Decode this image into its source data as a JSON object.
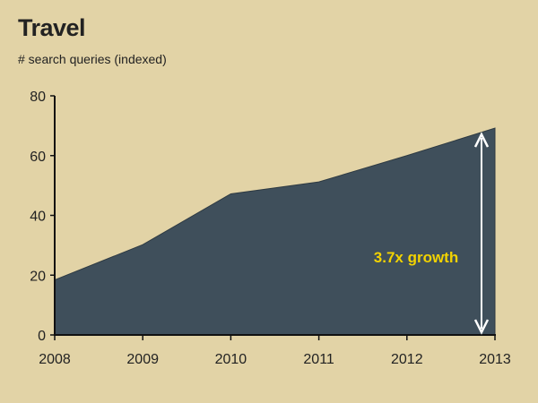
{
  "chart_data": {
    "type": "area",
    "title": "Travel",
    "subtitle": "# search queries (indexed)",
    "xlabel": "",
    "ylabel": "",
    "categories": [
      "2008",
      "2009",
      "2010",
      "2011",
      "2012",
      "2013"
    ],
    "values": [
      18.4,
      30.2,
      47.2,
      51.2,
      60.0,
      69.2
    ],
    "ylim": [
      0,
      80
    ],
    "yticks": [
      "0",
      "20",
      "40",
      "60",
      "80"
    ],
    "grid": false,
    "annotation": "3.7x growth",
    "colors": {
      "background": "#e2d3a6",
      "fill": "#3f4f5b",
      "annotation": "#f2d200",
      "arrow": "#ffffff",
      "axis": "#111111"
    }
  }
}
